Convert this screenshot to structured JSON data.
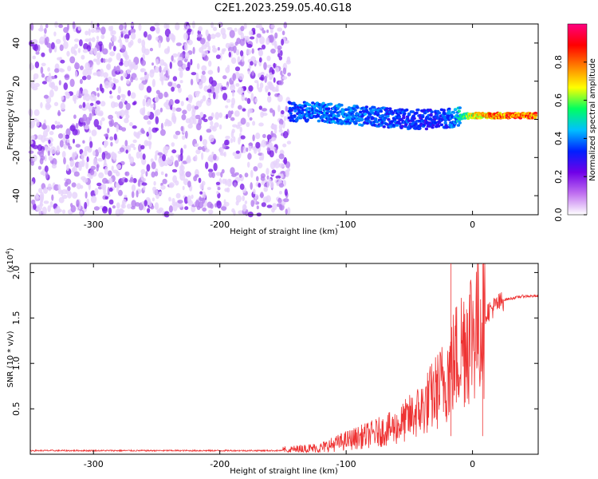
{
  "title": "C2E1.2023.259.05.40.G18",
  "chart_data": [
    {
      "type": "heatmap",
      "xlabel": "Height of straight line (km)",
      "ylabel": "Frequency (Hz)",
      "xlim": [
        -350,
        52
      ],
      "ylim": [
        -50,
        50
      ],
      "x_ticks": [
        "-300",
        "-200",
        "-100",
        "0"
      ],
      "x_tick_values": [
        -300,
        -200,
        -100,
        0
      ],
      "y_ticks": [
        "40",
        "20",
        "0",
        "-20",
        "-40"
      ],
      "y_tick_values": [
        40,
        20,
        0,
        -20,
        -40
      ],
      "colorbar": {
        "label": "Normalized spectral amplitude",
        "ticks": [
          "0.0",
          "0.2",
          "0.4",
          "0.6",
          "0.8"
        ],
        "tick_values": [
          0.0,
          0.2,
          0.4,
          0.6,
          0.8
        ],
        "range": [
          0,
          1
        ],
        "colormap": [
          "#ffffff",
          "#c070f0",
          "#7000e8",
          "#0020ff",
          "#00c0ff",
          "#00ff60",
          "#ffff00",
          "#ff8000",
          "#ff0000",
          "#ff0080"
        ]
      },
      "noise_region": {
        "x": [
          -350,
          -145
        ],
        "y": [
          -50,
          50
        ],
        "amplitude": 0.12
      },
      "signal_trace": [
        {
          "x": -145,
          "y": 4,
          "amplitude": 0.35
        },
        {
          "x": -130,
          "y": 4,
          "amplitude": 0.4
        },
        {
          "x": -110,
          "y": 3,
          "amplitude": 0.42
        },
        {
          "x": -90,
          "y": 2,
          "amplitude": 0.4
        },
        {
          "x": -70,
          "y": 1,
          "amplitude": 0.38
        },
        {
          "x": -50,
          "y": 0,
          "amplitude": 0.36
        },
        {
          "x": -30,
          "y": 0,
          "amplitude": 0.34
        },
        {
          "x": -15,
          "y": 1,
          "amplitude": 0.4
        },
        {
          "x": 0,
          "y": 2,
          "amplitude": 0.7
        },
        {
          "x": 20,
          "y": 2,
          "amplitude": 0.85
        },
        {
          "x": 50,
          "y": 2,
          "amplitude": 0.85
        }
      ]
    },
    {
      "type": "line",
      "xlabel": "Height of straight line (km)",
      "ylabel": "SNR (10 * v/v)",
      "y_multiplier": "(x10",
      "y_multiplier_exp": "4",
      "y_multiplier_close": ")",
      "xlim": [
        -350,
        52
      ],
      "ylim": [
        0,
        2.1
      ],
      "x_ticks": [
        "-300",
        "-200",
        "-100",
        "0"
      ],
      "x_tick_values": [
        -300,
        -200,
        -100,
        0
      ],
      "y_ticks": [
        "2.0",
        "1.5",
        "1.0",
        "0.5"
      ],
      "y_tick_values": [
        2.0,
        1.5,
        1.0,
        0.5
      ],
      "color": "#ee3333",
      "envelope": [
        {
          "x": -350,
          "y": 0.04
        },
        {
          "x": -200,
          "y": 0.04
        },
        {
          "x": -150,
          "y": 0.04
        },
        {
          "x": -120,
          "y": 0.07
        },
        {
          "x": -100,
          "y": 0.15
        },
        {
          "x": -80,
          "y": 0.22
        },
        {
          "x": -60,
          "y": 0.3
        },
        {
          "x": -40,
          "y": 0.5
        },
        {
          "x": -25,
          "y": 0.75
        },
        {
          "x": -15,
          "y": 1.0
        },
        {
          "x": -5,
          "y": 1.3
        },
        {
          "x": 10,
          "y": 1.55
        },
        {
          "x": 25,
          "y": 1.7
        },
        {
          "x": 40,
          "y": 1.74
        },
        {
          "x": 52,
          "y": 1.74
        }
      ],
      "spikes": [
        {
          "x": -17,
          "y": 2.1
        },
        {
          "x": 8,
          "y": 2.1
        }
      ]
    }
  ]
}
